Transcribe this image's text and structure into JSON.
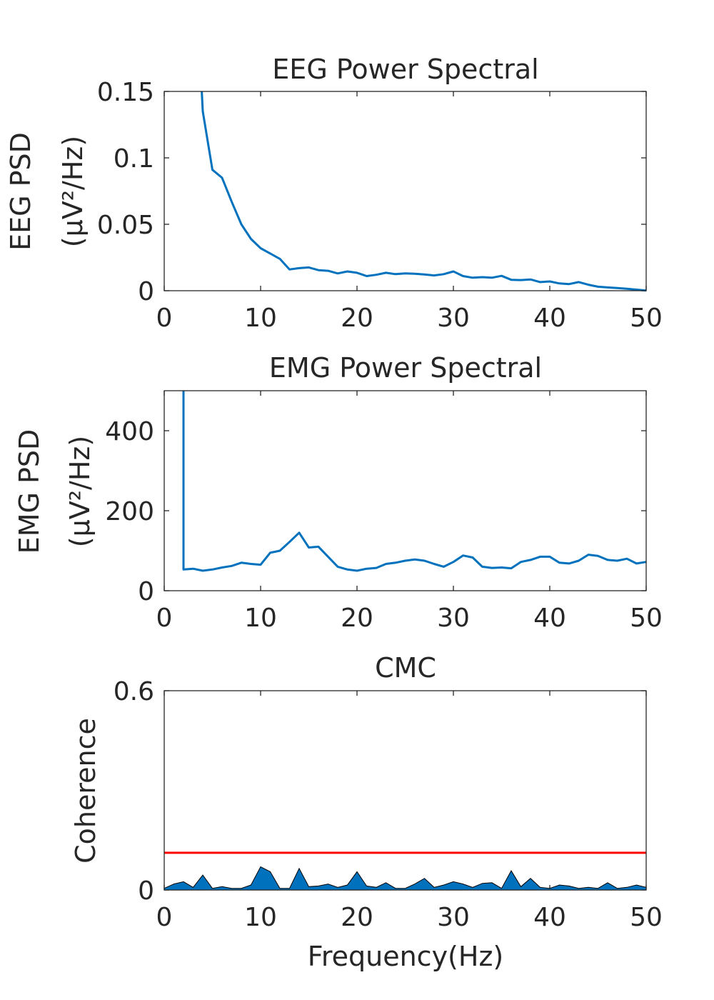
{
  "figure": {
    "background": "#ffffff"
  },
  "chart_data": [
    {
      "id": "eeg",
      "type": "line",
      "title": "EEG Power Spectral",
      "ylabel_line1": "EEG PSD",
      "ylabel_line2": "(μV²/Hz)",
      "xlabel": "",
      "xlim": [
        0,
        50
      ],
      "ylim": [
        0,
        0.15
      ],
      "xticks": [
        0,
        10,
        20,
        30,
        40,
        50
      ],
      "yticks": [
        0,
        0.05,
        0.1,
        0.15
      ],
      "xtick_labels": [
        "0",
        "10",
        "20",
        "30",
        "40",
        "50"
      ],
      "ytick_labels": [
        "0",
        "0.05",
        "0.1",
        "0.15"
      ],
      "grid": false,
      "series": [
        {
          "color": "#0072BD",
          "x": [
            4,
            5,
            6,
            7,
            8,
            9,
            10,
            11,
            12,
            13,
            14,
            15,
            16,
            17,
            18,
            19,
            20,
            21,
            22,
            23,
            24,
            25,
            26,
            27,
            28,
            29,
            30,
            31,
            32,
            33,
            34,
            35,
            36,
            37,
            38,
            39,
            40,
            41,
            42,
            43,
            44,
            45,
            46,
            47,
            48,
            49,
            50
          ],
          "values": [
            0.135,
            0.091,
            0.085,
            0.067,
            0.05,
            0.039,
            0.032,
            0.028,
            0.024,
            0.016,
            0.017,
            0.0175,
            0.0155,
            0.015,
            0.013,
            0.0145,
            0.0135,
            0.011,
            0.012,
            0.0135,
            0.0125,
            0.013,
            0.0128,
            0.0122,
            0.0115,
            0.0125,
            0.0145,
            0.011,
            0.0098,
            0.0102,
            0.0098,
            0.0112,
            0.0082,
            0.008,
            0.0085,
            0.0065,
            0.007,
            0.0055,
            0.005,
            0.0065,
            0.0045,
            0.003,
            0.0025,
            0.002,
            0.0015,
            0.0008,
            0.0001
          ]
        }
      ],
      "offscale_start": {
        "x": 3.9,
        "y": 0.15
      }
    },
    {
      "id": "emg",
      "type": "line",
      "title": "EMG Power Spectral",
      "ylabel_line1": "EMG PSD",
      "ylabel_line2": "(μV²/Hz)",
      "xlabel": "",
      "xlim": [
        0,
        50
      ],
      "ylim": [
        0,
        500
      ],
      "xticks": [
        0,
        10,
        20,
        30,
        40,
        50
      ],
      "yticks": [
        0,
        200,
        400
      ],
      "xtick_labels": [
        "0",
        "10",
        "20",
        "30",
        "40",
        "50"
      ],
      "ytick_labels": [
        "0",
        "200",
        "400"
      ],
      "grid": false,
      "series": [
        {
          "color": "#0072BD",
          "x": [
            2,
            3,
            4,
            5,
            6,
            7,
            8,
            9,
            10,
            11,
            12,
            13,
            14,
            15,
            16,
            17,
            18,
            19,
            20,
            21,
            22,
            23,
            24,
            25,
            26,
            27,
            28,
            29,
            30,
            31,
            32,
            33,
            34,
            35,
            36,
            37,
            38,
            39,
            40,
            41,
            42,
            43,
            44,
            45,
            46,
            47,
            48,
            49,
            50
          ],
          "values": [
            53,
            55,
            50,
            53,
            58,
            62,
            70,
            67,
            65,
            95,
            100,
            122,
            145,
            108,
            110,
            85,
            60,
            53,
            50,
            55,
            57,
            67,
            70,
            75,
            78,
            75,
            67,
            60,
            72,
            88,
            83,
            60,
            57,
            58,
            56,
            72,
            77,
            85,
            85,
            70,
            68,
            75,
            90,
            87,
            77,
            75,
            80,
            68,
            72
          ]
        }
      ],
      "offscale_start": {
        "x": 2,
        "y": 500
      }
    },
    {
      "id": "cmc",
      "type": "area",
      "title": "CMC",
      "ylabel_line1": "Coherence",
      "xlabel": "Frequency(Hz)",
      "xlim": [
        0,
        50
      ],
      "ylim": [
        0,
        0.6
      ],
      "xticks": [
        0,
        10,
        20,
        30,
        40,
        50
      ],
      "yticks": [
        0,
        0.6
      ],
      "xtick_labels": [
        "0",
        "10",
        "20",
        "30",
        "40",
        "50"
      ],
      "ytick_labels": [
        "0",
        "0.6"
      ],
      "grid": false,
      "series": [
        {
          "color": "#0072BD",
          "x": [
            0,
            1,
            2,
            3,
            4,
            5,
            6,
            7,
            8,
            9,
            10,
            11,
            12,
            13,
            14,
            15,
            16,
            17,
            18,
            19,
            20,
            21,
            22,
            23,
            24,
            25,
            26,
            27,
            28,
            29,
            30,
            31,
            32,
            33,
            34,
            35,
            36,
            37,
            38,
            39,
            40,
            41,
            42,
            43,
            44,
            45,
            46,
            47,
            48,
            49,
            50
          ],
          "values": [
            0.005,
            0.018,
            0.025,
            0.008,
            0.045,
            0.005,
            0.01,
            0.005,
            0.005,
            0.015,
            0.07,
            0.055,
            0.005,
            0.005,
            0.065,
            0.01,
            0.012,
            0.018,
            0.008,
            0.015,
            0.055,
            0.012,
            0.008,
            0.022,
            0.005,
            0.005,
            0.018,
            0.035,
            0.008,
            0.015,
            0.025,
            0.018,
            0.008,
            0.02,
            0.022,
            0.005,
            0.058,
            0.01,
            0.035,
            0.008,
            0.005,
            0.015,
            0.012,
            0.005,
            0.008,
            0.005,
            0.022,
            0.005,
            0.008,
            0.015,
            0.008
          ]
        },
        {
          "color": "#FF0000",
          "x": [
            0,
            50
          ],
          "values": [
            0.112,
            0.112
          ]
        }
      ]
    }
  ]
}
